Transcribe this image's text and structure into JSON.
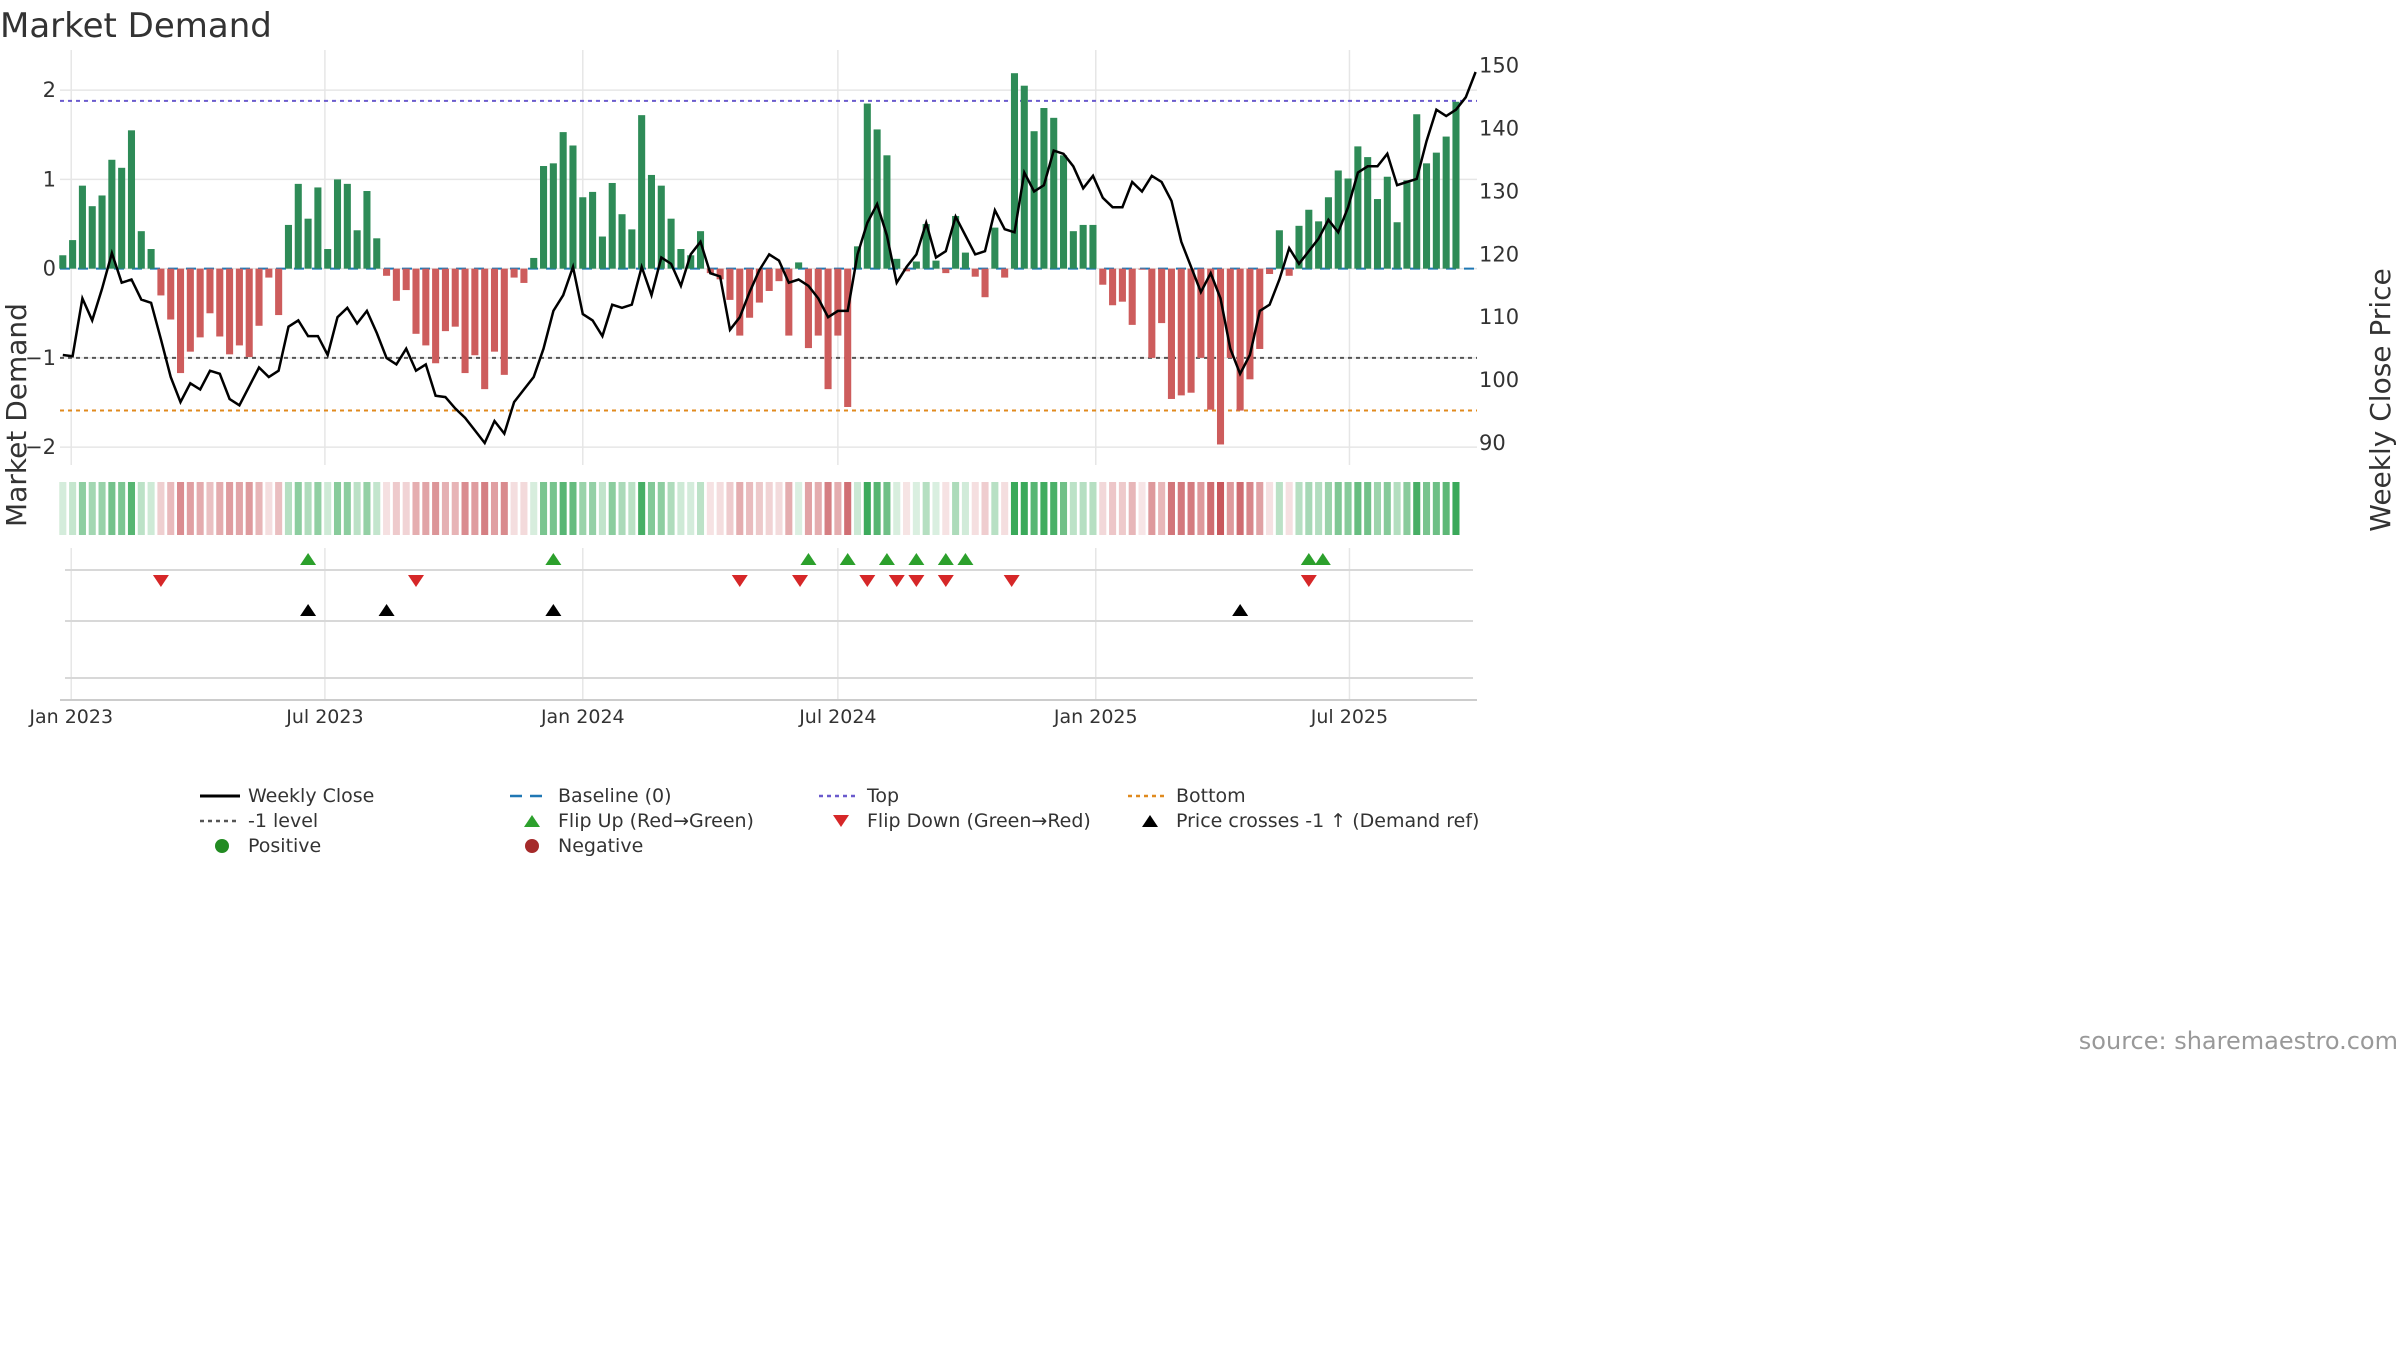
{
  "title": "Market Demand",
  "source": "source: sharemaestro.com",
  "colors": {
    "positive": "#2e8b57",
    "negative": "#cd5c5c",
    "line": "#000000",
    "top_line": "#6a5acd",
    "bottom_line": "#e08a1e",
    "minus_one_line": "#555555",
    "baseline": "#1f77b4",
    "flip_up": "#2ca02c",
    "flip_down": "#d62728",
    "cross": "#000000",
    "grid": "#e6e6e6",
    "text": "#333333"
  },
  "legend": [
    {
      "label": "Weekly Close",
      "kind": "line",
      "color": "#000000"
    },
    {
      "label": "Baseline (0)",
      "kind": "dash",
      "color": "#1f77b4"
    },
    {
      "label": "Top",
      "kind": "dot",
      "color": "#6a5acd"
    },
    {
      "label": "Bottom",
      "kind": "dot",
      "color": "#e08a1e"
    },
    {
      "label": "-1 level",
      "kind": "dot",
      "color": "#555555"
    },
    {
      "label": "Flip Up (Red→Green)",
      "kind": "tri-up",
      "color": "#2ca02c"
    },
    {
      "label": "Flip Down (Green→Red)",
      "kind": "tri-down",
      "color": "#d62728"
    },
    {
      "label": "Price crosses -1 ↑ (Demand ref)",
      "kind": "tri-up",
      "color": "#000000"
    },
    {
      "label": "Positive",
      "kind": "dot-circle",
      "color": "#228b22"
    },
    {
      "label": "Negative",
      "kind": "dot-circle",
      "color": "#a52a2a"
    }
  ],
  "chart_data": {
    "type": "bar",
    "title": "Market Demand",
    "ylabel": "Market Demand",
    "y2label": "Weekly Close Price",
    "ylim": [
      -2.2,
      2.45
    ],
    "y2lim": [
      86.5,
      152.5
    ],
    "yticks": [
      -2,
      -1,
      0,
      1,
      2
    ],
    "ytick_labels": [
      "−2",
      "−1",
      "0",
      "1",
      "2"
    ],
    "y2ticks": [
      90,
      100,
      110,
      120,
      130,
      140,
      150
    ],
    "y2tick_labels": [
      "90",
      "100",
      "110",
      "120",
      "130",
      "140",
      "150"
    ],
    "x_range": [
      "2022-12-24",
      "2025-09-30"
    ],
    "x_tick_dates": [
      "2023-01-01",
      "2023-07-01",
      "2024-01-01",
      "2024-07-01",
      "2025-01-01",
      "2025-07-01"
    ],
    "x_tick_labels": [
      "Jan 2023",
      "Jul 2023",
      "Jan 2024",
      "Jul 2024",
      "Jan 2025",
      "Jul 2025"
    ],
    "start_date": "2022-12-26",
    "week_days": 7,
    "top_level": 1.88,
    "bottom_level": -1.59,
    "minus_one_level": -1.0,
    "grid": true,
    "series": [
      {
        "name": "Market Demand",
        "values": [
          0.15,
          0.32,
          0.93,
          0.7,
          0.82,
          1.22,
          1.13,
          1.55,
          0.42,
          0.22,
          -0.3,
          -0.57,
          -1.17,
          -0.93,
          -0.77,
          -0.5,
          -0.76,
          -0.96,
          -0.86,
          -0.99,
          -0.64,
          -0.1,
          -0.52,
          0.49,
          0.95,
          0.56,
          0.91,
          0.22,
          1.0,
          0.95,
          0.43,
          0.87,
          0.34,
          -0.08,
          -0.36,
          -0.24,
          -0.73,
          -0.86,
          -1.06,
          -0.7,
          -0.65,
          -1.17,
          -0.97,
          -1.35,
          -0.93,
          -1.19,
          -0.1,
          -0.16,
          0.12,
          1.15,
          1.18,
          1.53,
          1.38,
          0.8,
          0.86,
          0.36,
          0.96,
          0.61,
          0.44,
          1.72,
          1.05,
          0.93,
          0.56,
          0.22,
          0.15,
          0.42,
          -0.05,
          -0.12,
          -0.35,
          -0.75,
          -0.55,
          -0.38,
          -0.25,
          -0.14,
          -0.75,
          0.07,
          -0.89,
          -0.75,
          -1.35,
          -0.75,
          -1.55,
          0.25,
          1.85,
          1.56,
          1.27,
          0.11,
          -0.03,
          0.08,
          0.5,
          0.09,
          -0.05,
          0.59,
          0.18,
          -0.09,
          -0.32,
          0.46,
          -0.1,
          2.19,
          2.05,
          1.54,
          1.8,
          1.69,
          1.27,
          0.42,
          0.49,
          0.49,
          -0.18,
          -0.41,
          -0.37,
          -0.63,
          -0.01,
          -1.0,
          -0.61,
          -1.46,
          -1.42,
          -1.39,
          -1.0,
          -1.58,
          -1.97,
          -1.0,
          -1.59,
          -1.24,
          -0.9,
          -0.06,
          0.43,
          -0.08,
          0.48,
          0.66,
          0.53,
          0.8,
          1.1,
          1.01,
          1.37,
          1.25,
          0.78,
          1.03,
          0.52,
          0.99,
          1.73,
          1.18,
          1.3,
          1.48,
          1.87
        ]
      },
      {
        "name": "Weekly Close",
        "axis": "right",
        "values": [
          104.0,
          103.8,
          113.0,
          109.5,
          114.5,
          120.2,
          115.5,
          116.0,
          112.8,
          112.3,
          106.5,
          100.5,
          96.5,
          99.5,
          98.5,
          101.5,
          101.0,
          97.0,
          96.0,
          99.0,
          102.0,
          100.5,
          101.5,
          108.5,
          109.5,
          107.0,
          107.0,
          104.0,
          110.0,
          111.5,
          109.0,
          111.0,
          107.5,
          103.5,
          102.5,
          105.0,
          101.5,
          102.5,
          97.5,
          97.3,
          95.5,
          94.0,
          92.0,
          90.0,
          93.5,
          91.5,
          96.5,
          98.5,
          100.5,
          105.0,
          111.0,
          113.5,
          118.0,
          110.5,
          109.5,
          107.0,
          112.0,
          111.5,
          112.0,
          118.0,
          113.5,
          119.5,
          118.5,
          115.0,
          120.0,
          122.0,
          117.0,
          116.5,
          108.0,
          110.0,
          114.0,
          117.5,
          120.0,
          119.0,
          115.5,
          116.0,
          115.0,
          113.0,
          110.0,
          111.0,
          111.0,
          120.0,
          125.0,
          128.0,
          123.0,
          115.5,
          118.0,
          120.0,
          125.0,
          119.5,
          120.5,
          126.0,
          123.0,
          120.0,
          120.5,
          127.0,
          124.0,
          123.5,
          133.0,
          130.0,
          131.0,
          136.5,
          136.0,
          134.0,
          130.5,
          132.5,
          129.0,
          127.5,
          127.5,
          131.5,
          130.0,
          132.5,
          131.5,
          128.5,
          122.0,
          118.0,
          114.0,
          117.0,
          113.0,
          105.0,
          101.0,
          104.0,
          111.0,
          112.0,
          116.0,
          121.0,
          118.5,
          120.5,
          122.5,
          125.5,
          123.5,
          127.5,
          133.0,
          134.0,
          134.0,
          136.0,
          131.0,
          131.5,
          132.0,
          138.0,
          143.0,
          142.0,
          143.0,
          145.0,
          149.0
        ]
      }
    ],
    "flip_up_dates": [
      "2023-06-19",
      "2023-12-11",
      "2024-06-10",
      "2024-07-08",
      "2024-08-05",
      "2024-08-26",
      "2024-09-16",
      "2024-09-30",
      "2025-06-02",
      "2025-06-12"
    ],
    "flip_down_dates": [
      "2023-03-06",
      "2023-09-04",
      "2024-04-22",
      "2024-06-04",
      "2024-07-22",
      "2024-08-12",
      "2024-08-26",
      "2024-09-16",
      "2024-11-02",
      "2025-06-02"
    ],
    "cross_up_dates": [
      "2023-06-19",
      "2023-08-14",
      "2023-12-11",
      "2025-04-14"
    ]
  }
}
